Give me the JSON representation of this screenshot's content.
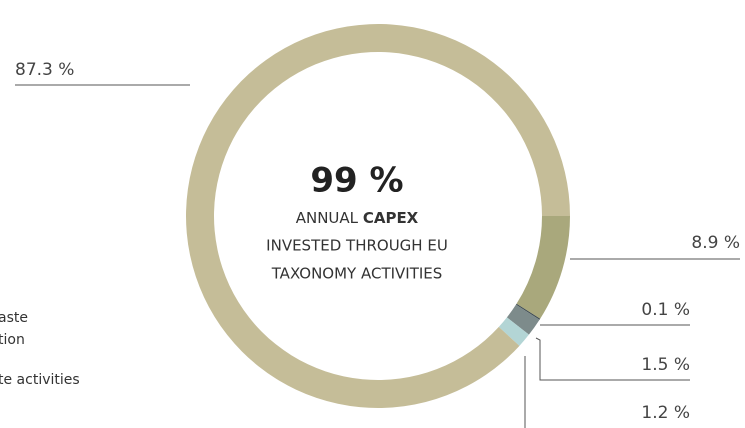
{
  "chart_data": {
    "type": "donut",
    "center_value": "99 %",
    "center_lines": [
      "ANNUAL",
      "CAPEX",
      "INVESTED THROUGH EU",
      "TAXONOMY ACTIVITIES"
    ],
    "categories": [
      null,
      null,
      null,
      null,
      null
    ],
    "values": [
      8.9,
      0.1,
      1.5,
      1.2,
      87.3
    ],
    "value_labels": [
      "8.9 %",
      "0.1 %",
      "1.5 %",
      "1.2 %",
      "87.3 %"
    ],
    "colors": [
      "#a9a87c",
      "#3d4a50",
      "#7d8b8b",
      "#b3d5d5",
      "#c5bd98"
    ],
    "legend_fragments": [
      "aste",
      "tion",
      "te activities"
    ]
  }
}
